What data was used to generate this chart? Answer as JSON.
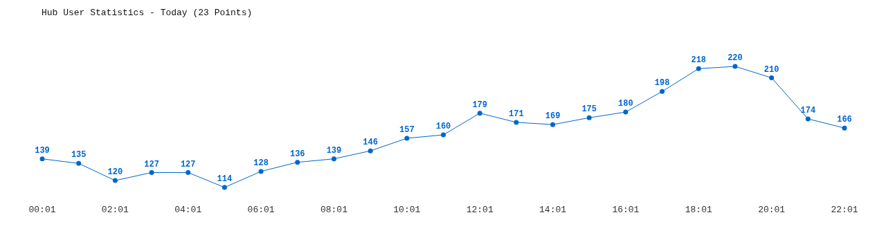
{
  "chart_data": {
    "type": "line",
    "title": "Hub User Statistics - Today (23 Points)",
    "categories": [
      "00:01",
      null,
      "02:01",
      null,
      "04:01",
      null,
      "06:01",
      null,
      "08:01",
      null,
      "10:01",
      null,
      "12:01",
      null,
      "14:01",
      null,
      "16:01",
      null,
      "18:01",
      null,
      "20:01",
      null,
      "22:01"
    ],
    "series": [
      {
        "color": "#0066cc",
        "values": [
          139,
          135,
          120,
          127,
          127,
          114,
          128,
          136,
          139,
          146,
          157,
          160,
          179,
          171,
          169,
          175,
          180,
          198,
          218,
          220,
          210,
          174,
          166
        ]
      }
    ],
    "marker": "circle",
    "data_labels": true,
    "tick_labels": "x"
  }
}
